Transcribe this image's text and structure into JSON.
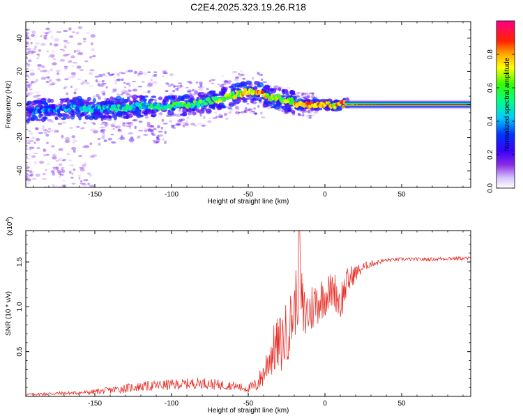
{
  "figure": {
    "title": "C2E4.2025.323.19.26.R18"
  },
  "chart_data": [
    {
      "type": "heatmap",
      "title": "C2E4.2025.323.19.26.R18",
      "xlabel": "Height of straight line (km)",
      "ylabel": "Frequency (Hz)",
      "xlim": [
        -195,
        95
      ],
      "ylim": [
        -50,
        50
      ],
      "xticks": [
        -150,
        -100,
        -50,
        0,
        50
      ],
      "yticks": [
        -40,
        -20,
        0,
        20,
        40
      ],
      "ridge": {
        "x": [
          -190,
          -175,
          -160,
          -150,
          -140,
          -130,
          -120,
          -110,
          -100,
          -90,
          -80,
          -70,
          -62,
          -55,
          -48,
          -43,
          -38,
          -32,
          -27,
          -22,
          -18,
          -14,
          -10,
          -5,
          0,
          5,
          10,
          13,
          20,
          40,
          60,
          80,
          95
        ],
        "y": [
          -4,
          -3,
          -2,
          -3,
          -2,
          -2,
          -1,
          -1,
          -1,
          0,
          1,
          3,
          5,
          7,
          8,
          7,
          5,
          4,
          3,
          2,
          0,
          -1,
          0,
          0,
          0,
          -1,
          0,
          0,
          0,
          0,
          0,
          0,
          0
        ],
        "amplitude": [
          0.3,
          0.35,
          0.4,
          0.42,
          0.45,
          0.45,
          0.48,
          0.5,
          0.52,
          0.55,
          0.55,
          0.6,
          0.65,
          0.7,
          0.75,
          0.82,
          0.7,
          0.65,
          0.62,
          0.65,
          0.8,
          0.85,
          0.8,
          0.75,
          0.8,
          0.75,
          0.8,
          0.85,
          0.9,
          0.95,
          0.97,
          0.98,
          0.98
        ]
      },
      "colorbar": {
        "label": "Normalized spectral amplitude",
        "range": [
          0.0,
          1.0
        ],
        "ticks": [
          "0.0",
          "0.2",
          "0.4",
          "0.6",
          "0.8"
        ]
      }
    },
    {
      "type": "line",
      "xlabel": "Height of straight line (km)",
      "ylabel": "SNR (10 * v/v)",
      "yscale_label": "(x10",
      "yscale_exp": "4",
      "yscale_close": ")",
      "xlim": [
        -195,
        95
      ],
      "ylim": [
        0,
        1.85
      ],
      "xticks": [
        -150,
        -100,
        -50,
        0,
        50
      ],
      "yticks": [
        0.5,
        1.0,
        1.5
      ],
      "ytick_labels": [
        "0.5",
        "1.0",
        "1.5"
      ],
      "series": [
        {
          "name": "SNR",
          "color": "#e8302a",
          "x": [
            -195,
            -180,
            -160,
            -150,
            -140,
            -130,
            -120,
            -110,
            -100,
            -90,
            -80,
            -70,
            -60,
            -55,
            -50,
            -45,
            -40,
            -36,
            -32,
            -28,
            -24,
            -20,
            -17,
            -14,
            -10,
            -6,
            -2,
            2,
            6,
            10,
            14,
            18,
            22,
            26,
            30,
            35,
            40,
            50,
            60,
            70,
            80,
            95
          ],
          "y": [
            0.02,
            0.03,
            0.04,
            0.05,
            0.07,
            0.09,
            0.11,
            0.12,
            0.13,
            0.14,
            0.15,
            0.13,
            0.12,
            0.1,
            0.09,
            0.12,
            0.25,
            0.45,
            0.55,
            0.6,
            0.75,
            0.95,
            1.3,
            0.9,
            0.95,
            1.05,
            1.1,
            1.15,
            1.2,
            1.05,
            1.25,
            1.35,
            1.4,
            1.45,
            1.48,
            1.5,
            1.52,
            1.53,
            1.53,
            1.53,
            1.54,
            1.54
          ],
          "noise": [
            0.01,
            0.02,
            0.02,
            0.03,
            0.04,
            0.05,
            0.05,
            0.06,
            0.06,
            0.06,
            0.06,
            0.06,
            0.05,
            0.05,
            0.05,
            0.08,
            0.15,
            0.25,
            0.3,
            0.35,
            0.35,
            0.35,
            0.45,
            0.35,
            0.3,
            0.28,
            0.25,
            0.22,
            0.2,
            0.25,
            0.18,
            0.12,
            0.08,
            0.05,
            0.04,
            0.03,
            0.02,
            0.02,
            0.02,
            0.02,
            0.02,
            0.02
          ]
        }
      ]
    }
  ]
}
